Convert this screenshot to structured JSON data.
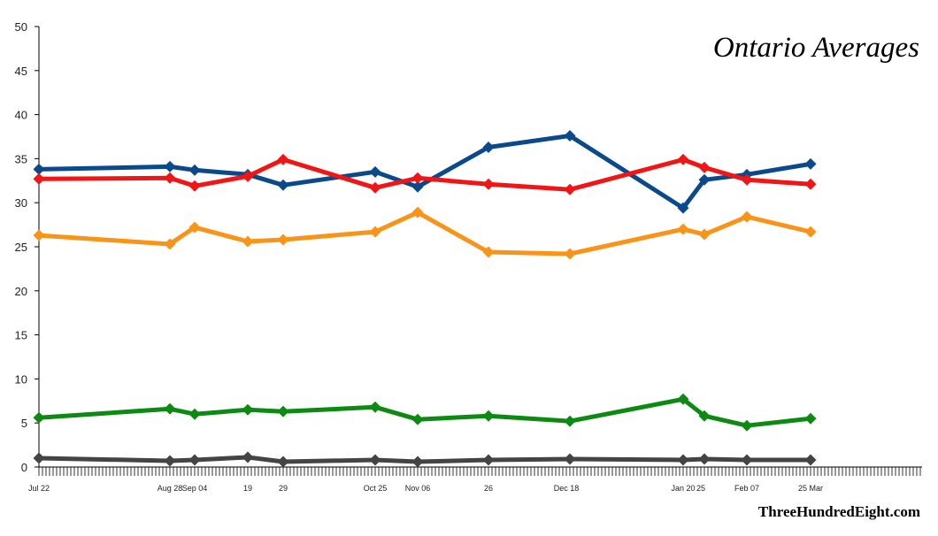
{
  "chart_data": {
    "type": "line",
    "title": "Ontario Averages",
    "credit": "ThreeHundredEight.com",
    "xlabel": "",
    "ylabel": "",
    "ylim": [
      0,
      50
    ],
    "yticks": [
      0,
      5,
      10,
      15,
      20,
      25,
      30,
      35,
      40,
      45,
      50
    ],
    "grid": false,
    "x_day_range": [
      0,
      259
    ],
    "x_tick_labels": [
      {
        "day": 0,
        "label": "Jul 22"
      },
      {
        "day": 37,
        "label": "Aug 28"
      },
      {
        "day": 44,
        "label": "Sep 04"
      },
      {
        "day": 59,
        "label": "19"
      },
      {
        "day": 69,
        "label": "29"
      },
      {
        "day": 95,
        "label": "Oct 25"
      },
      {
        "day": 107,
        "label": "Nov 06"
      },
      {
        "day": 127,
        "label": "26"
      },
      {
        "day": 149,
        "label": "Dec 18"
      },
      {
        "day": 182,
        "label": "Jan 20"
      },
      {
        "day": 187,
        "label": "25"
      },
      {
        "day": 200,
        "label": "Feb 07"
      },
      {
        "day": 218,
        "label": "25 Mar"
      }
    ],
    "x_days": [
      0,
      37,
      44,
      59,
      69,
      95,
      107,
      127,
      150,
      182,
      188,
      200,
      218
    ],
    "series": [
      {
        "name": "Blue",
        "color": "#0a4a8c",
        "values": [
          33.8,
          34.1,
          33.7,
          33.2,
          32.0,
          33.5,
          31.8,
          36.3,
          37.6,
          29.4,
          32.6,
          33.2,
          34.4
        ]
      },
      {
        "name": "Red",
        "color": "#f21515",
        "values": [
          32.7,
          32.8,
          31.9,
          33.0,
          34.9,
          31.7,
          32.8,
          32.1,
          31.5,
          34.9,
          34.0,
          32.6,
          32.1
        ]
      },
      {
        "name": "Orange",
        "color": "#fa9418",
        "values": [
          26.3,
          25.3,
          27.2,
          25.6,
          25.8,
          26.7,
          28.9,
          24.4,
          24.2,
          27.0,
          26.4,
          28.4,
          26.7
        ]
      },
      {
        "name": "Green",
        "color": "#0d8a12",
        "values": [
          5.6,
          6.6,
          6.0,
          6.5,
          6.3,
          6.8,
          5.4,
          5.8,
          5.2,
          7.7,
          5.8,
          4.7,
          5.5
        ]
      },
      {
        "name": "Grey",
        "color": "#444444",
        "values": [
          1.0,
          0.7,
          0.8,
          1.1,
          0.6,
          0.8,
          0.6,
          0.8,
          0.9,
          0.8,
          0.9,
          0.8,
          0.8
        ]
      }
    ]
  }
}
